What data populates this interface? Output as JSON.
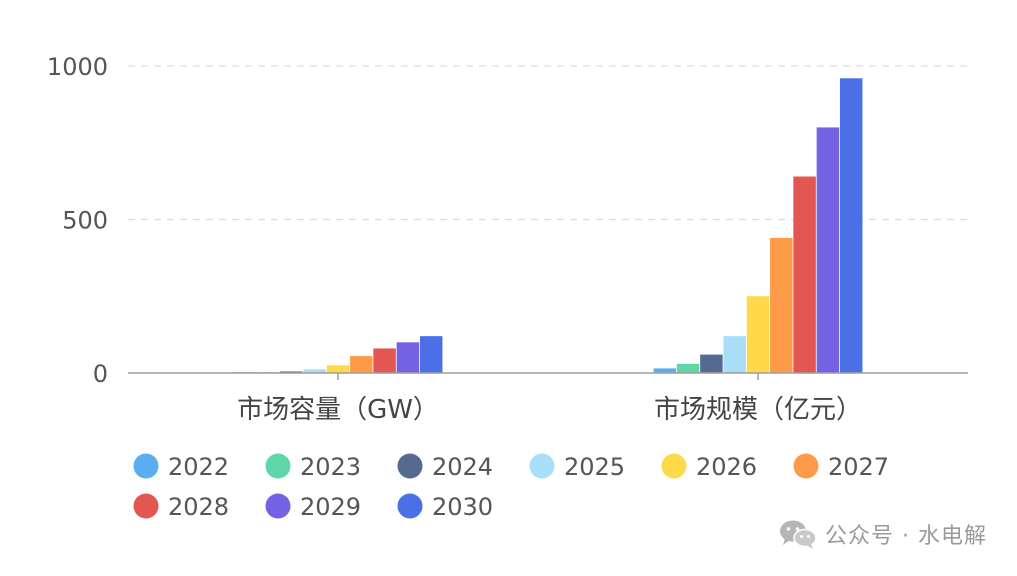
{
  "chart_data": {
    "type": "bar",
    "title": "",
    "xlabel": "",
    "ylabel": "",
    "categories": [
      "市场容量（GW）",
      "市场规模（亿元）"
    ],
    "ylim": [
      0,
      1000
    ],
    "yticks": [
      0,
      500,
      1000
    ],
    "grid": true,
    "legend_position": "bottom-left",
    "series": [
      {
        "name": "2022",
        "color": "#5AAEF0",
        "values": [
          1,
          15
        ]
      },
      {
        "name": "2023",
        "color": "#5ED6A8",
        "values": [
          2,
          30
        ]
      },
      {
        "name": "2024",
        "color": "#566A91",
        "values": [
          5,
          60
        ]
      },
      {
        "name": "2025",
        "color": "#A8DEF8",
        "values": [
          12,
          120
        ]
      },
      {
        "name": "2026",
        "color": "#FFD94A",
        "values": [
          25,
          250
        ]
      },
      {
        "name": "2027",
        "color": "#FF9A48",
        "values": [
          55,
          440
        ]
      },
      {
        "name": "2028",
        "color": "#E45652",
        "values": [
          80,
          640
        ]
      },
      {
        "name": "2029",
        "color": "#7561E4",
        "values": [
          100,
          800
        ]
      },
      {
        "name": "2030",
        "color": "#4A6FE6",
        "values": [
          120,
          960
        ]
      }
    ]
  },
  "watermark": {
    "text": "公众号 · 水电解",
    "icon": "wechat-icon"
  }
}
